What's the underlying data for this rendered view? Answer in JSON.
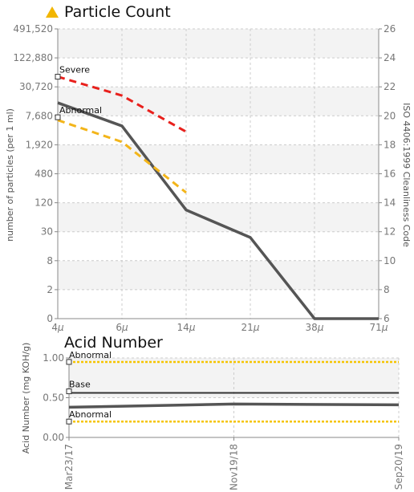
{
  "colors": {
    "warning_icon": "#f2b600",
    "measured": "#555555",
    "severe": "#e8201c",
    "abnormal_particle": "#f3b51a",
    "limit_yellow": "#f5c400",
    "base": "#333333",
    "band": "#f3f3f3",
    "grid": "#cccccc"
  },
  "icons": {
    "title_icon": "warning-triangle-icon"
  },
  "chart_data": [
    {
      "type": "line",
      "title": "Particle Count",
      "ylabel": "number of particles (per 1 ml)",
      "y2label": "ISO 4406:1999 Cleanliness Code",
      "categories": [
        "4μ",
        "6μ",
        "14μ",
        "21μ",
        "38μ",
        "71μ"
      ],
      "x_ticks": [
        {
          "label": "4",
          "unit": "μ"
        },
        {
          "label": "6",
          "unit": "μ"
        },
        {
          "label": "14",
          "unit": "μ"
        },
        {
          "label": "21",
          "unit": "μ"
        },
        {
          "label": "38",
          "unit": "μ"
        },
        {
          "label": "71",
          "unit": "μ"
        }
      ],
      "y_ticks": [
        "491,520",
        "122,880",
        "30,720",
        "7,680",
        "1,920",
        "480",
        "120",
        "30",
        "8",
        "2",
        "0"
      ],
      "y_tick_codes": [
        26,
        24,
        22,
        20,
        18,
        16,
        14,
        12,
        10,
        8,
        6
      ],
      "y2_ticks": [
        "26",
        "24",
        "22",
        "20",
        "18",
        "16",
        "14",
        "12",
        "10",
        "8",
        "6"
      ],
      "y2lim": [
        6,
        26
      ],
      "scale": "log (ISO code)",
      "grid": true,
      "series": [
        {
          "key": "measured",
          "style": "solid",
          "values": [
            20.9,
            19.3,
            13.5,
            11.6,
            6,
            6
          ]
        },
        {
          "key": "severe",
          "style": "dashed",
          "values": [
            22.7,
            21.4,
            18.9,
            null,
            null,
            null
          ]
        },
        {
          "key": "abnormal",
          "style": "dashed",
          "values": [
            19.7,
            18.2,
            14.7,
            null,
            null,
            null
          ]
        }
      ],
      "annotations": [
        {
          "text": "Severe",
          "x": "4μ",
          "y": 22.7
        },
        {
          "text": "Abnormal",
          "x": "4μ",
          "y": 19.9
        }
      ]
    },
    {
      "type": "line",
      "title": "Acid Number",
      "ylabel": "Acid Number (mg KOH/g)",
      "categories": [
        "Mar23/17",
        "Nov19/18",
        "Sep20/19"
      ],
      "y_ticks": [
        "1.00",
        "0.50",
        "0.00"
      ],
      "ylim": [
        0,
        1
      ],
      "grid": true,
      "series": [
        {
          "key": "measured",
          "style": "solid",
          "values": [
            0.38,
            0.42,
            0.41
          ]
        },
        {
          "key": "base",
          "style": "solid",
          "values": [
            0.56,
            0.56,
            0.56
          ]
        },
        {
          "key": "abnormal_high",
          "style": "dashed",
          "values": [
            0.95,
            0.95,
            0.95
          ]
        },
        {
          "key": "abnormal_low",
          "style": "dashed",
          "values": [
            0.2,
            0.2,
            0.2
          ]
        }
      ],
      "annotations": [
        {
          "text": "Abnormal",
          "y": 0.95
        },
        {
          "text": "Base",
          "y": 0.58
        },
        {
          "text": "Abnormal",
          "y": 0.2
        }
      ]
    }
  ]
}
